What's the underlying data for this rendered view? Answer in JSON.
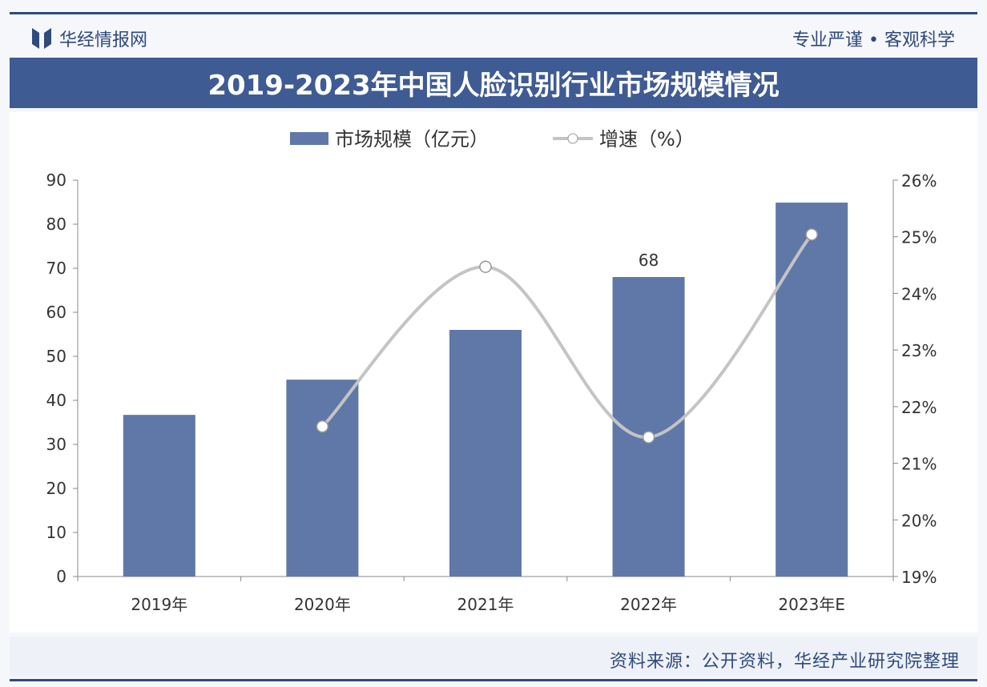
{
  "header": {
    "brand": "华经情报网",
    "slogan": "专业严谨 • 客观科学",
    "title": "2019-2023年中国人脸识别行业市场规模情况"
  },
  "footer": {
    "source": "资料来源：公开资料，华经产业研究院整理"
  },
  "colors": {
    "bar": "#5f78a8",
    "line": "#c4c4c4",
    "title_bg": "#3f5b93",
    "brand": "#2f4a7c"
  },
  "chart_data": {
    "type": "bar",
    "title": "2019-2023年中国人脸识别行业市场规模情况",
    "categories": [
      "2019年",
      "2020年",
      "2021年",
      "2022年",
      "2023年E"
    ],
    "series": [
      {
        "name": "市场规模（亿元）",
        "type": "bar",
        "axis": "left",
        "values": [
          36.7,
          44.7,
          56,
          68,
          84.9
        ]
      },
      {
        "name": "增速（%）",
        "type": "line",
        "axis": "right",
        "values": [
          null,
          21.65,
          24.47,
          21.46,
          25.04
        ]
      }
    ],
    "data_labels": [
      {
        "category": "2022年",
        "text": "68"
      }
    ],
    "left_axis": {
      "ylim": [
        0,
        90
      ],
      "ticks": [
        "0",
        "10",
        "20",
        "30",
        "40",
        "50",
        "60",
        "70",
        "80",
        "90"
      ]
    },
    "right_axis": {
      "ylim": [
        19,
        26
      ],
      "ticks": [
        "19%",
        "20%",
        "21%",
        "22%",
        "23%",
        "24%",
        "25%",
        "26%"
      ]
    },
    "legend": "top-center",
    "grid": false
  }
}
